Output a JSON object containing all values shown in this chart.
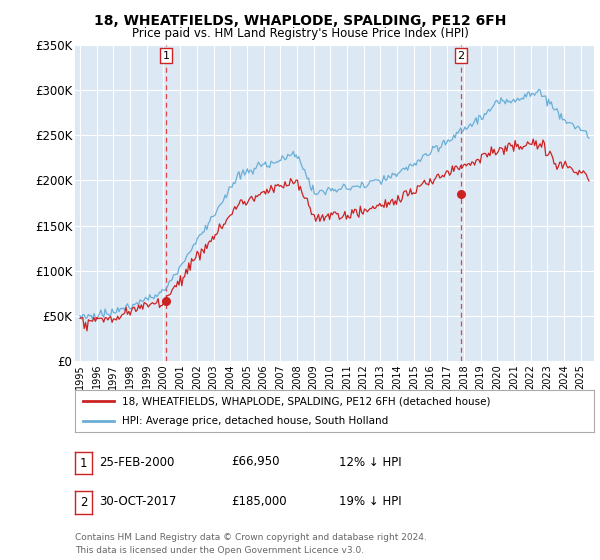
{
  "title": "18, WHEATFIELDS, WHAPLODE, SPALDING, PE12 6FH",
  "subtitle": "Price paid vs. HM Land Registry's House Price Index (HPI)",
  "legend_line1": "18, WHEATFIELDS, WHAPLODE, SPALDING, PE12 6FH (detached house)",
  "legend_line2": "HPI: Average price, detached house, South Holland",
  "transaction1_date": 2000.15,
  "transaction1_price": 66950,
  "transaction1_label": "1",
  "transaction2_date": 2017.83,
  "transaction2_price": 185000,
  "transaction2_label": "2",
  "table_row1": [
    "1",
    "25-FEB-2000",
    "£66,950",
    "12% ↓ HPI"
  ],
  "table_row2": [
    "2",
    "30-OCT-2017",
    "£185,000",
    "19% ↓ HPI"
  ],
  "footer": "Contains HM Land Registry data © Crown copyright and database right 2024.\nThis data is licensed under the Open Government Licence v3.0.",
  "ylim": [
    0,
    350000
  ],
  "yticks": [
    0,
    50000,
    100000,
    150000,
    200000,
    250000,
    300000,
    350000
  ],
  "ytick_labels": [
    "£0",
    "£50K",
    "£100K",
    "£150K",
    "£200K",
    "£250K",
    "£300K",
    "£350K"
  ],
  "xlim_start": 1994.7,
  "xlim_end": 2025.8,
  "hpi_color": "#6baed6",
  "price_color": "#cc2222",
  "plot_bg": "#dce9f5",
  "grid_color": "#ffffff",
  "marker_color": "#cc2222",
  "vline_color": "#dd4444",
  "footnote_color": "#666666"
}
